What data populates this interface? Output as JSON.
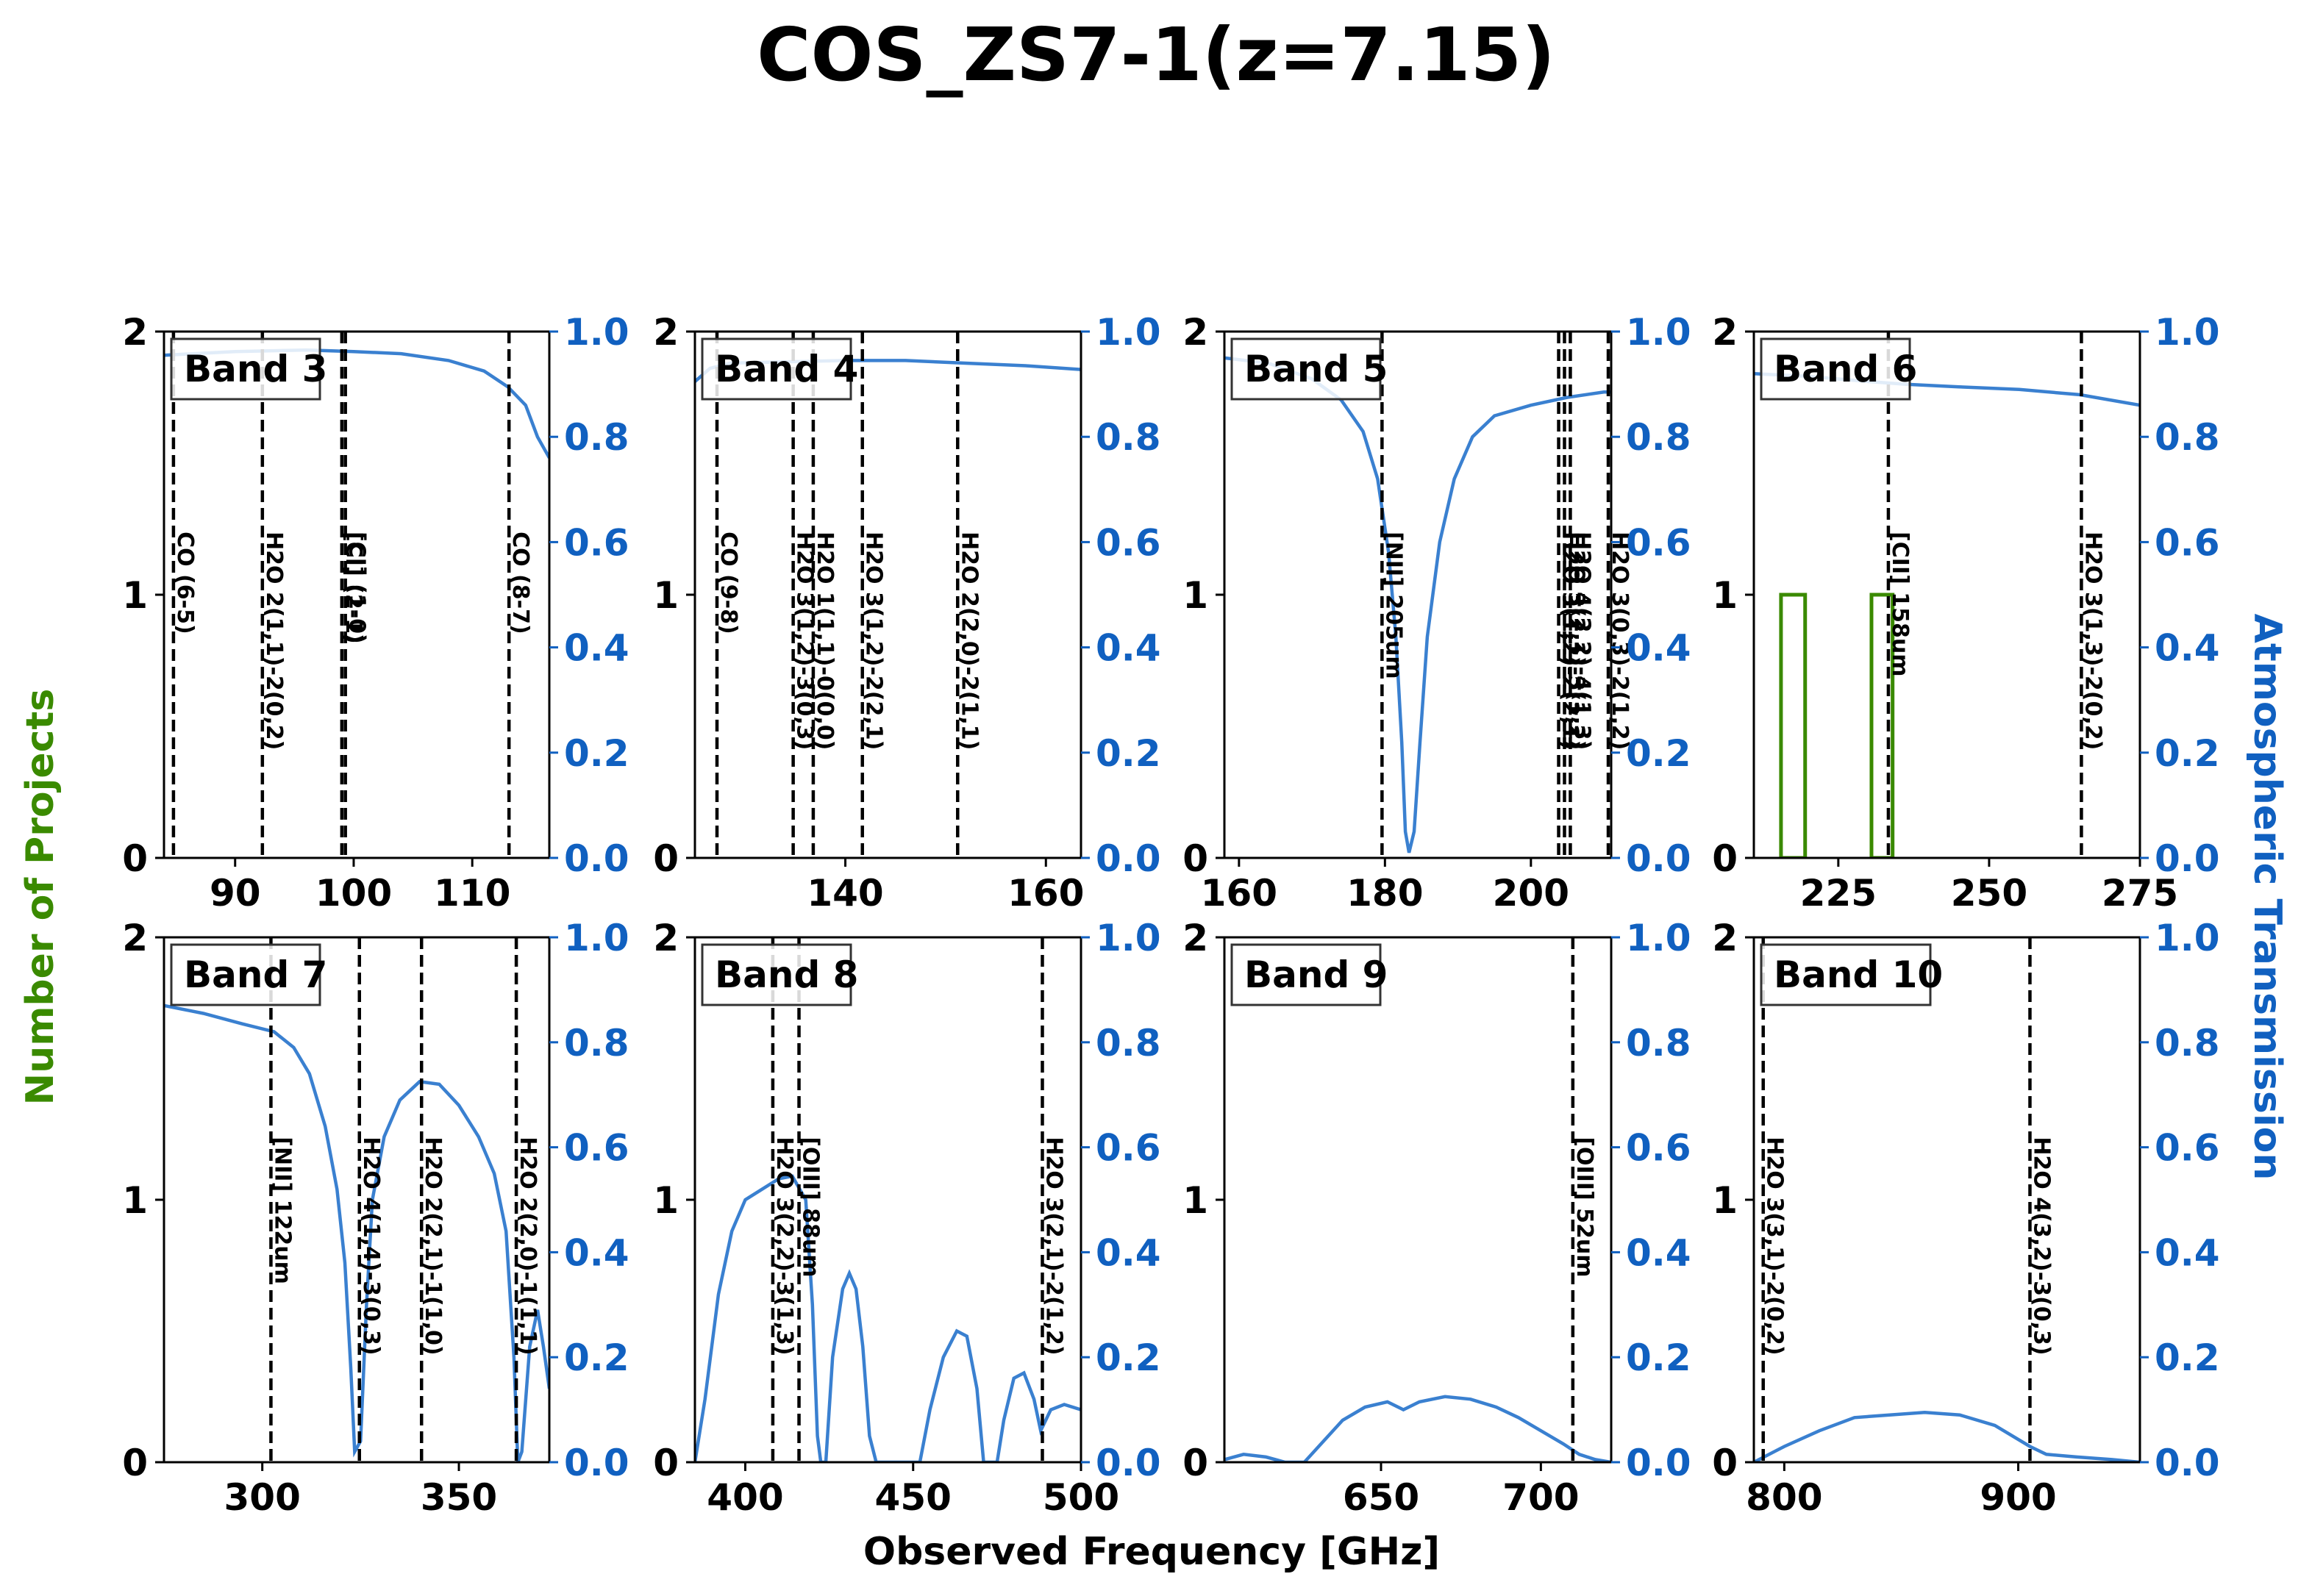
{
  "title": "COS_ZS7-1(z=7.15)",
  "xlabel": "Observed Frequency [GHz]",
  "ylabel_left": "Number of Projects",
  "ylabel_right": "Atmospheric Transmission",
  "colors": {
    "left_axis": "#3a8a00",
    "right_axis": "#1060c0",
    "transmission": "#3a80d0",
    "histogram": "#3a8a00",
    "lines": "#000000"
  },
  "chart_data": [
    {
      "type": "line",
      "band": "Band 3",
      "xlim": [
        84,
        116.5
      ],
      "ylim": [
        0,
        2
      ],
      "y2lim": [
        0,
        1
      ],
      "xticks": [
        90,
        100,
        110
      ],
      "lines": [
        {
          "freq": 84.8,
          "label": "CO (6-5)"
        },
        {
          "freq": 92.3,
          "label": "H2O 2(1,1)-2(0,2)"
        },
        {
          "freq": 99.0,
          "label": "[CI] (2-1)"
        },
        {
          "freq": 99.3,
          "label": "[CI] (1-0)"
        },
        {
          "freq": 113.1,
          "label": "CO (8-7)"
        }
      ],
      "histogram": [],
      "transmission": [
        [
          84,
          0.955
        ],
        [
          90,
          0.962
        ],
        [
          96,
          0.965
        ],
        [
          100,
          0.962
        ],
        [
          104,
          0.958
        ],
        [
          108,
          0.945
        ],
        [
          111,
          0.925
        ],
        [
          113,
          0.895
        ],
        [
          114.5,
          0.86
        ],
        [
          115.5,
          0.8
        ],
        [
          116.5,
          0.76
        ]
      ]
    },
    {
      "type": "line",
      "band": "Band 4",
      "xlim": [
        125,
        163.5
      ],
      "ylim": [
        0,
        2
      ],
      "y2lim": [
        0,
        1
      ],
      "xticks": [
        140,
        160
      ],
      "lines": [
        {
          "freq": 127.2,
          "label": "CO (9-8)"
        },
        {
          "freq": 134.8,
          "label": "H2O 3(1,2)-3(0,3)"
        },
        {
          "freq": 136.8,
          "label": "H2O 1(1,1)-0(0,0)"
        },
        {
          "freq": 141.7,
          "label": "H2O 3(1,2)-2(2,1)"
        },
        {
          "freq": 151.2,
          "label": "H2O 2(2,0)-2(1,1)"
        }
      ],
      "histogram": [],
      "transmission": [
        [
          125,
          0.905
        ],
        [
          126.5,
          0.93
        ],
        [
          128.5,
          0.94
        ],
        [
          133,
          0.942
        ],
        [
          140,
          0.945
        ],
        [
          146,
          0.945
        ],
        [
          152,
          0.94
        ],
        [
          158,
          0.935
        ],
        [
          163.5,
          0.928
        ]
      ]
    },
    {
      "type": "line",
      "band": "Band 5",
      "xlim": [
        158,
        211
      ],
      "ylim": [
        0,
        2
      ],
      "y2lim": [
        0,
        1
      ],
      "xticks": [
        160,
        180,
        200
      ],
      "lines": [
        {
          "freq": 179.6,
          "label": "[NII] 205um"
        },
        {
          "freq": 203.8,
          "label": "H2O 3(1,2)-2(2,1)"
        },
        {
          "freq": 204.6,
          "label": "H2O 3(2,1)-3(1,2)"
        },
        {
          "freq": 205.4,
          "label": "H2O 4(2,2)-4(1,3)"
        },
        {
          "freq": 210.6,
          "label": "H2O 3(0,3)-2(1,2)"
        }
      ],
      "histogram": [],
      "transmission": [
        [
          158,
          0.95
        ],
        [
          164,
          0.94
        ],
        [
          170,
          0.91
        ],
        [
          174,
          0.87
        ],
        [
          177,
          0.81
        ],
        [
          179,
          0.72
        ],
        [
          180.5,
          0.58
        ],
        [
          181.5,
          0.42
        ],
        [
          182.3,
          0.22
        ],
        [
          182.8,
          0.05
        ],
        [
          183.3,
          0.01
        ],
        [
          184,
          0.05
        ],
        [
          184.8,
          0.22
        ],
        [
          185.8,
          0.42
        ],
        [
          187.5,
          0.6
        ],
        [
          189.5,
          0.72
        ],
        [
          192,
          0.8
        ],
        [
          195,
          0.84
        ],
        [
          200,
          0.86
        ],
        [
          205,
          0.875
        ],
        [
          210,
          0.885
        ],
        [
          211,
          0.885
        ]
      ]
    },
    {
      "type": "bar",
      "band": "Band 6",
      "xlim": [
        211,
        275
      ],
      "ylim": [
        0,
        2
      ],
      "y2lim": [
        0,
        1
      ],
      "xticks": [
        225,
        250,
        275
      ],
      "lines": [
        {
          "freq": 233.3,
          "label": "[CII] 158um"
        },
        {
          "freq": 265.3,
          "label": "H2O 3(1,3)-2(0,2)"
        }
      ],
      "histogram": [
        [
          215.5,
          219.5,
          1
        ],
        [
          230.5,
          234,
          1
        ]
      ],
      "transmission": [
        [
          211,
          0.92
        ],
        [
          220,
          0.915
        ],
        [
          230,
          0.905
        ],
        [
          236,
          0.9
        ],
        [
          245,
          0.895
        ],
        [
          255,
          0.89
        ],
        [
          265,
          0.88
        ],
        [
          275,
          0.86
        ]
      ]
    },
    {
      "type": "line",
      "band": "Band 7",
      "xlim": [
        275,
        373
      ],
      "ylim": [
        0,
        2
      ],
      "y2lim": [
        0,
        1
      ],
      "xticks": [
        300,
        350
      ],
      "lines": [
        {
          "freq": 302.2,
          "label": "[NII] 122um"
        },
        {
          "freq": 324.7,
          "label": "H2O 4(1,4)-3(0,3)"
        },
        {
          "freq": 340.5,
          "label": "H2O 2(2,1)-1(1,0)"
        },
        {
          "freq": 364.6,
          "label": "H2O 2(2,0)-1(1,1)"
        }
      ],
      "histogram": [],
      "transmission": [
        [
          275,
          0.87
        ],
        [
          285,
          0.855
        ],
        [
          295,
          0.835
        ],
        [
          303,
          0.82
        ],
        [
          308,
          0.79
        ],
        [
          312,
          0.74
        ],
        [
          316,
          0.64
        ],
        [
          319,
          0.52
        ],
        [
          321,
          0.38
        ],
        [
          322.5,
          0.18
        ],
        [
          323.5,
          0.02
        ],
        [
          325,
          0.04
        ],
        [
          326.5,
          0.3
        ],
        [
          328,
          0.5
        ],
        [
          331,
          0.62
        ],
        [
          335,
          0.69
        ],
        [
          340,
          0.725
        ],
        [
          345,
          0.72
        ],
        [
          350,
          0.68
        ],
        [
          355,
          0.62
        ],
        [
          359,
          0.55
        ],
        [
          362,
          0.44
        ],
        [
          364,
          0.2
        ],
        [
          365,
          0.0
        ],
        [
          366,
          0.02
        ],
        [
          368,
          0.22
        ],
        [
          370,
          0.29
        ],
        [
          371.5,
          0.22
        ],
        [
          373,
          0.14
        ]
      ]
    },
    {
      "type": "line",
      "band": "Band 8",
      "xlim": [
        385,
        500
      ],
      "ylim": [
        0,
        2
      ],
      "y2lim": [
        0,
        1
      ],
      "xticks": [
        400,
        450,
        500
      ],
      "lines": [
        {
          "freq": 408.2,
          "label": "H2O 3(2,2)-3(1,3)"
        },
        {
          "freq": 416.0,
          "label": "[OIII] 88um"
        },
        {
          "freq": 488.5,
          "label": "H2O 3(2,1)-2(1,2)"
        }
      ],
      "histogram": [],
      "transmission": [
        [
          385,
          0.0
        ],
        [
          388,
          0.12
        ],
        [
          392,
          0.32
        ],
        [
          396,
          0.44
        ],
        [
          400,
          0.5
        ],
        [
          405,
          0.52
        ],
        [
          410,
          0.54
        ],
        [
          414,
          0.545
        ],
        [
          418,
          0.5
        ],
        [
          420,
          0.3
        ],
        [
          421.5,
          0.05
        ],
        [
          422.5,
          0.0
        ],
        [
          424,
          0.0
        ],
        [
          426,
          0.2
        ],
        [
          429,
          0.33
        ],
        [
          431,
          0.36
        ],
        [
          433,
          0.33
        ],
        [
          435,
          0.22
        ],
        [
          437,
          0.05
        ],
        [
          439,
          0.0
        ],
        [
          452,
          0.0
        ],
        [
          455,
          0.1
        ],
        [
          459,
          0.2
        ],
        [
          463,
          0.25
        ],
        [
          466,
          0.24
        ],
        [
          469,
          0.14
        ],
        [
          471,
          0.0
        ],
        [
          475,
          0.0
        ],
        [
          477,
          0.08
        ],
        [
          480,
          0.16
        ],
        [
          483,
          0.17
        ],
        [
          486,
          0.12
        ],
        [
          488,
          0.06
        ],
        [
          491,
          0.1
        ],
        [
          495,
          0.11
        ],
        [
          500,
          0.1
        ]
      ]
    },
    {
      "type": "line",
      "band": "Band 9",
      "xlim": [
        601,
        722
      ],
      "ylim": [
        0,
        2
      ],
      "y2lim": [
        0,
        1
      ],
      "xticks": [
        650,
        700
      ],
      "lines": [
        {
          "freq": 710.0,
          "label": "[OIII] 52um"
        }
      ],
      "histogram": [],
      "transmission": [
        [
          601,
          0.005
        ],
        [
          607,
          0.015
        ],
        [
          614,
          0.01
        ],
        [
          620,
          0.0
        ],
        [
          626,
          0.0
        ],
        [
          632,
          0.04
        ],
        [
          638,
          0.08
        ],
        [
          645,
          0.105
        ],
        [
          652,
          0.115
        ],
        [
          657,
          0.1
        ],
        [
          662,
          0.115
        ],
        [
          670,
          0.125
        ],
        [
          678,
          0.12
        ],
        [
          686,
          0.105
        ],
        [
          693,
          0.085
        ],
        [
          700,
          0.06
        ],
        [
          707,
          0.035
        ],
        [
          712,
          0.015
        ],
        [
          717,
          0.005
        ],
        [
          722,
          0.0
        ]
      ]
    },
    {
      "type": "line",
      "band": "Band 10",
      "xlim": [
        787,
        952
      ],
      "ylim": [
        0,
        2
      ],
      "y2lim": [
        0,
        1
      ],
      "xticks": [
        800,
        900
      ],
      "lines": [
        {
          "freq": 791.0,
          "label": "H2O 3(3,1)-2(0,2)"
        },
        {
          "freq": 905.0,
          "label": "H2O 4(3,2)-3(0,3)"
        }
      ],
      "histogram": [],
      "transmission": [
        [
          787,
          0.0
        ],
        [
          800,
          0.03
        ],
        [
          815,
          0.06
        ],
        [
          830,
          0.085
        ],
        [
          845,
          0.09
        ],
        [
          860,
          0.095
        ],
        [
          875,
          0.09
        ],
        [
          890,
          0.07
        ],
        [
          905,
          0.03
        ],
        [
          912,
          0.015
        ],
        [
          925,
          0.01
        ],
        [
          940,
          0.005
        ],
        [
          952,
          0.0
        ]
      ]
    }
  ]
}
